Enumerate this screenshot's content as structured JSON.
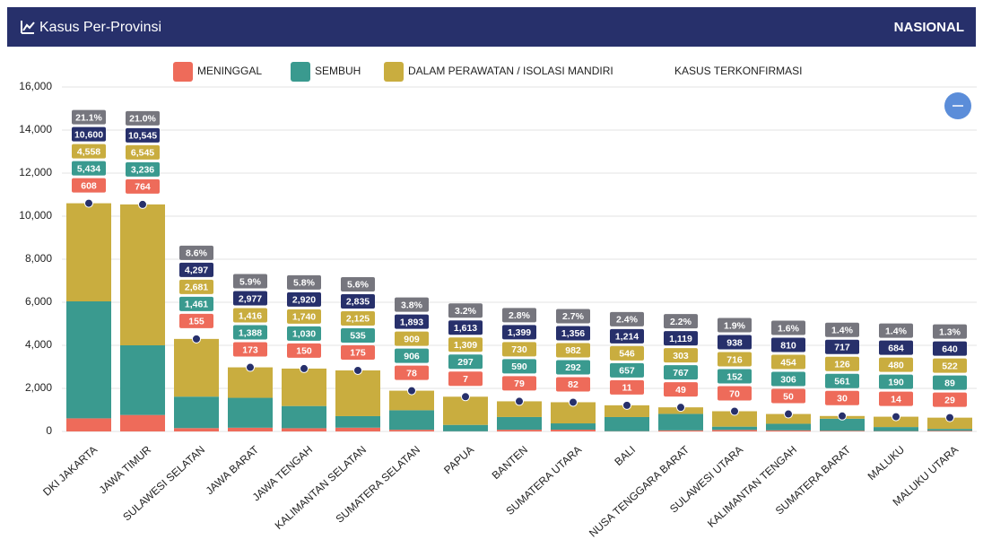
{
  "header": {
    "title": "Kasus Per-Provinsi",
    "scope": "NASIONAL"
  },
  "chart_data": {
    "type": "stacked_bar",
    "categories": [
      "DKI JAKARTA",
      "JAWA TIMUR",
      "SULAWESI SELATAN",
      "JAWA BARAT",
      "JAWA TENGAH",
      "KALIMANTAN SELATAN",
      "SUMATERA SELATAN",
      "PAPUA",
      "BANTEN",
      "SUMATERA UTARA",
      "BALI",
      "NUSA TENGGARA BARAT",
      "SULAWESI UTARA",
      "KALIMANTAN TENGAH",
      "SUMATERA BARAT",
      "MALUKU",
      "MALUKU UTARA"
    ],
    "series": [
      {
        "name": "MENINGGAL",
        "color": "#ee6b5a",
        "values": [
          608,
          764,
          155,
          173,
          150,
          175,
          78,
          7,
          79,
          82,
          11,
          49,
          70,
          50,
          30,
          14,
          29
        ]
      },
      {
        "name": "SEMBUH",
        "color": "#3a9a8f",
        "values": [
          5434,
          3236,
          1461,
          1388,
          1030,
          535,
          906,
          297,
          590,
          292,
          657,
          767,
          152,
          306,
          561,
          190,
          89
        ],
        "value_labels": [
          "5,434",
          "3,236",
          "1,461",
          "1,388",
          "1,030",
          "535",
          "906",
          "297",
          "590",
          "292",
          "657",
          "767",
          "152",
          "306",
          "561",
          "190",
          "89"
        ]
      },
      {
        "name": "DALAM PERAWATAN / ISOLASI MANDIRI",
        "color": "#c9ad3f",
        "values": [
          4558,
          6545,
          2681,
          1416,
          1740,
          2125,
          909,
          1309,
          730,
          982,
          546,
          303,
          716,
          454,
          126,
          480,
          522
        ],
        "value_labels": [
          "4,558",
          "6,545",
          "2,681",
          "1,416",
          "1,740",
          "2,125",
          "909",
          "1,309",
          "730",
          "982",
          "546",
          "303",
          "716",
          "454",
          "126",
          "480",
          "522"
        ]
      }
    ],
    "confirmed": {
      "name": "KASUS TERKONFIRMASI",
      "color": "#27306b",
      "values": [
        10600,
        10545,
        4297,
        2977,
        2920,
        2835,
        1893,
        1613,
        1399,
        1356,
        1214,
        1119,
        938,
        810,
        717,
        684,
        640
      ],
      "value_labels": [
        "10,600",
        "10,545",
        "4,297",
        "2,977",
        "2,920",
        "2,835",
        "1,893",
        "1,613",
        "1,399",
        "1,356",
        "1,214",
        "1,119",
        "938",
        "810",
        "717",
        "684",
        "640"
      ]
    },
    "shares": {
      "color": "#76767e",
      "values": [
        21.1,
        21.0,
        8.6,
        5.9,
        5.8,
        5.6,
        3.8,
        3.2,
        2.8,
        2.7,
        2.4,
        2.2,
        1.9,
        1.6,
        1.4,
        1.4,
        1.3
      ],
      "value_labels": [
        "21.1%",
        "21.0%",
        "8.6%",
        "5.9%",
        "5.8%",
        "5.6%",
        "3.8%",
        "3.2%",
        "2.8%",
        "2.7%",
        "2.4%",
        "2.2%",
        "1.9%",
        "1.6%",
        "1.4%",
        "1.4%",
        "1.3%"
      ]
    },
    "ylim": [
      0,
      16000
    ],
    "yticks": [
      0,
      {
        "value": 2000,
        "label": "2,000"
      },
      {
        "value": 4000,
        "label": "4,000"
      },
      {
        "value": 6000,
        "label": "6,000"
      },
      {
        "value": 8000,
        "label": "8,000"
      },
      {
        "value": 10000,
        "label": "10,000"
      },
      {
        "value": 12000,
        "label": "12,000"
      },
      {
        "value": 14000,
        "label": "14,000"
      },
      {
        "value": 16000,
        "label": "16,000"
      }
    ],
    "grid": true
  }
}
